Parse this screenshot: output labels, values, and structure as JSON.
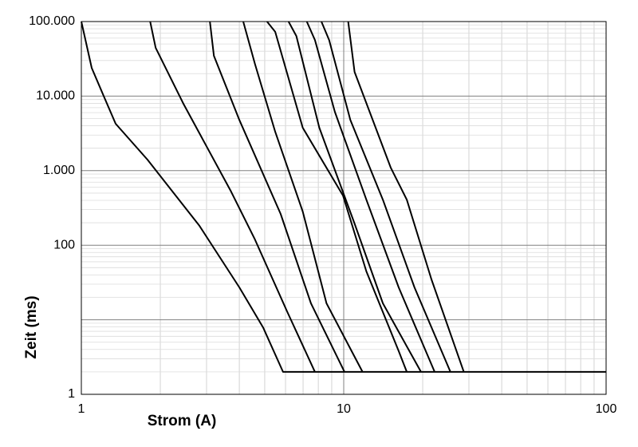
{
  "chart_data": {
    "type": "line",
    "x_label": "Strom (A)",
    "y_label": "Zeit (ms)",
    "x_log": true,
    "y_log": true,
    "grid": true,
    "minor_grid": true,
    "xlim": [
      1,
      100
    ],
    "ylim": [
      1,
      100000
    ],
    "xticks": [
      1,
      10,
      100
    ],
    "yticks": [
      1,
      {
        "value": 10,
        "label": null
      },
      100,
      {
        "value": 1000,
        "label": "1.000"
      },
      {
        "value": 10000,
        "label": "10.000"
      },
      {
        "value": 100000,
        "label": "100.000"
      }
    ],
    "series": [
      {
        "color": "#000000",
        "x": [
          1,
          1.095,
          1.216,
          1.351,
          1.786,
          2.82,
          4.0,
          4.93,
          5.87,
          100
        ],
        "values": [
          100000,
          23900,
          10100,
          4260,
          1406,
          182,
          27.2,
          7.9,
          2,
          2
        ]
      },
      {
        "color": "#000000",
        "x": [
          1.83,
          1.92,
          2.45,
          3.72,
          4.59,
          6.08,
          7.77
        ],
        "values": [
          100000,
          44400,
          7890,
          525,
          119,
          13,
          2
        ]
      },
      {
        "color": "#000000",
        "x": [
          3.09,
          3.2,
          4.0,
          5.75,
          7.5,
          10.07
        ],
        "values": [
          100000,
          34700,
          4800,
          263,
          16.6,
          2
        ]
      },
      {
        "color": "#000000",
        "x": [
          4.14,
          4.59,
          5.48,
          6.98,
          8.6,
          11.8
        ],
        "values": [
          100000,
          27000,
          3320,
          283,
          16.6,
          2
        ]
      },
      {
        "color": "#000000",
        "x": [
          5.1,
          5.48,
          6.98,
          9.94,
          12.2,
          16.2,
          17.4
        ],
        "values": [
          100000,
          72800,
          3770,
          463,
          44.5,
          3.8,
          2
        ]
      },
      {
        "color": "#000000",
        "x": [
          6.16,
          6.6,
          8.07,
          11.0,
          14.1,
          19.7
        ],
        "values": [
          100000,
          64000,
          3770,
          195,
          16.6,
          2
        ]
      },
      {
        "color": "#000000",
        "x": [
          7.23,
          7.77,
          9.25,
          12.2,
          16.2,
          22.2
        ],
        "values": [
          100000,
          56600,
          6150,
          408,
          27.2,
          2
        ]
      },
      {
        "color": "#000000",
        "x": [
          8.22,
          8.8,
          10.6,
          14.1,
          18.6,
          25.5
        ],
        "values": [
          100000,
          56600,
          4800,
          408,
          27.2,
          2
        ]
      },
      {
        "color": "#000000",
        "x": [
          10.4,
          11.0,
          15.1,
          17.4,
          21.6,
          28.7
        ],
        "values": [
          100000,
          21100,
          1100,
          408,
          34.8,
          2
        ]
      }
    ]
  }
}
